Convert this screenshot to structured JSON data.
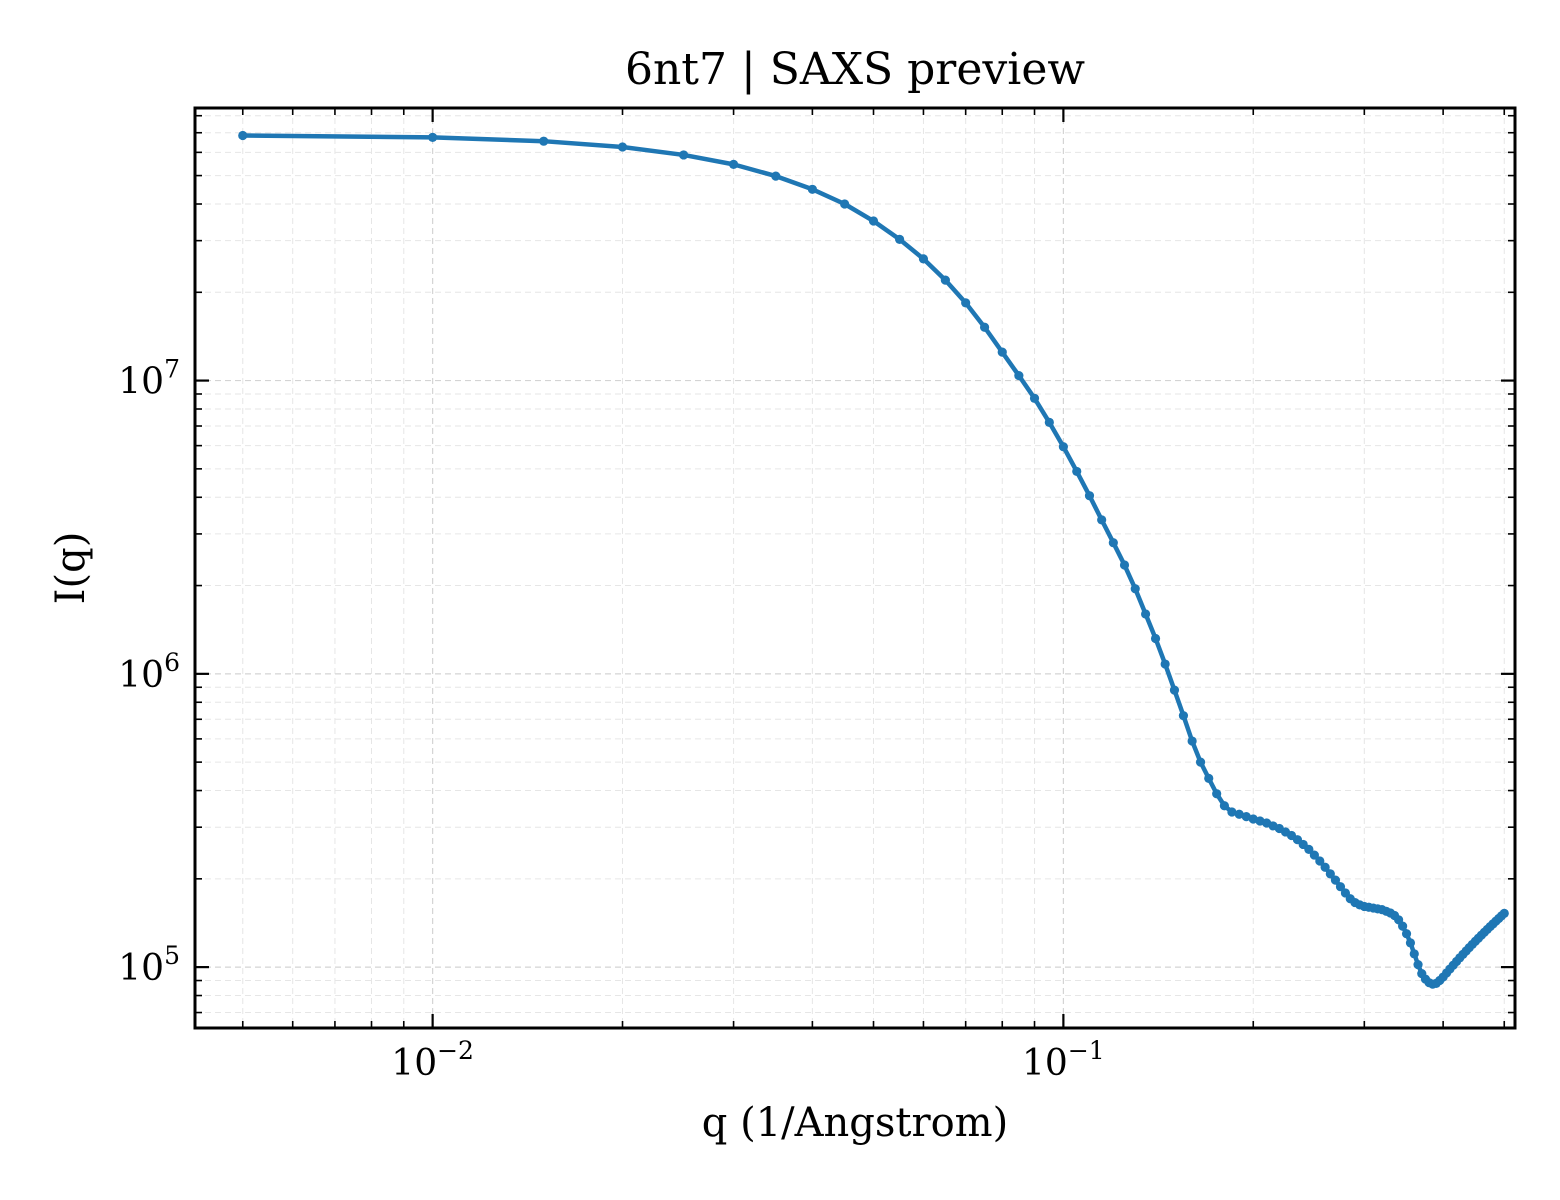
{
  "chart_data": {
    "type": "line",
    "title": "6nt7 | SAXS preview",
    "xlabel": "q (1/Angstrom)",
    "ylabel": "I(q)",
    "xscale": "log",
    "yscale": "log",
    "xlim": [
      0.0042,
      0.52
    ],
    "ylim": [
      62000,
      85000000
    ],
    "grid": true,
    "legend": "none",
    "color": "#1f77b4",
    "xticks": [
      {
        "base": "10",
        "exp": "−2",
        "value": 0.01
      },
      {
        "base": "10",
        "exp": "−1",
        "value": 0.1
      }
    ],
    "yticks": [
      {
        "base": "10",
        "exp": "5",
        "value": 100000
      },
      {
        "base": "10",
        "exp": "6",
        "value": 1000000
      },
      {
        "base": "10",
        "exp": "7",
        "value": 10000000
      }
    ],
    "series": [
      {
        "x": [
          0.005,
          0.01,
          0.015,
          0.02,
          0.025,
          0.03,
          0.035,
          0.04,
          0.045,
          0.05,
          0.055,
          0.06,
          0.065,
          0.07,
          0.075,
          0.08,
          0.085,
          0.09,
          0.095,
          0.1,
          0.105,
          0.11,
          0.115,
          0.12,
          0.125,
          0.13,
          0.135,
          0.14,
          0.145,
          0.15,
          0.155,
          0.16,
          0.165,
          0.17,
          0.175,
          0.18,
          0.185,
          0.19,
          0.195,
          0.2,
          0.205,
          0.21,
          0.215,
          0.22,
          0.225,
          0.23,
          0.235,
          0.24,
          0.245,
          0.25,
          0.255,
          0.26,
          0.265,
          0.27,
          0.275,
          0.28,
          0.285,
          0.29,
          0.295,
          0.3,
          0.305,
          0.31,
          0.315,
          0.32,
          0.325,
          0.33,
          0.335,
          0.34,
          0.345,
          0.35,
          0.355,
          0.36,
          0.365,
          0.37,
          0.375,
          0.38,
          0.385,
          0.39,
          0.395,
          0.4,
          0.405,
          0.41,
          0.415,
          0.42,
          0.425,
          0.43,
          0.435,
          0.44,
          0.445,
          0.45,
          0.455,
          0.46,
          0.465,
          0.47,
          0.475,
          0.48,
          0.485,
          0.49,
          0.495,
          0.5
        ],
        "y": [
          68500000,
          67500000,
          65500000,
          62600000,
          58800000,
          54600000,
          49800000,
          44900000,
          40000000,
          35000000,
          30300000,
          26000000,
          22000000,
          18400000,
          15200000,
          12500000,
          10400000,
          8700000,
          7200000,
          5950000,
          4900000,
          4050000,
          3350000,
          2800000,
          2350000,
          1950000,
          1600000,
          1320000,
          1080000,
          880000,
          720000,
          590000,
          500000,
          440000,
          390000,
          355000,
          338000,
          332000,
          326000,
          320000,
          315000,
          310000,
          303000,
          297000,
          289000,
          281000,
          272000,
          262000,
          252000,
          241000,
          230000,
          219000,
          208000,
          198000,
          188000,
          179000,
          171000,
          166000,
          163000,
          161000,
          160000,
          159000,
          158000,
          157000,
          155000,
          153000,
          150000,
          145000,
          138000,
          130000,
          121000,
          111000,
          102000,
          95000,
          91000,
          88500,
          87500,
          88000,
          90000,
          92500,
          95500,
          98500,
          101500,
          104500,
          107500,
          110500,
          113500,
          116500,
          119500,
          122500,
          125500,
          128500,
          131500,
          134500,
          137500,
          140500,
          143500,
          146500,
          149500,
          152500
        ]
      }
    ]
  }
}
